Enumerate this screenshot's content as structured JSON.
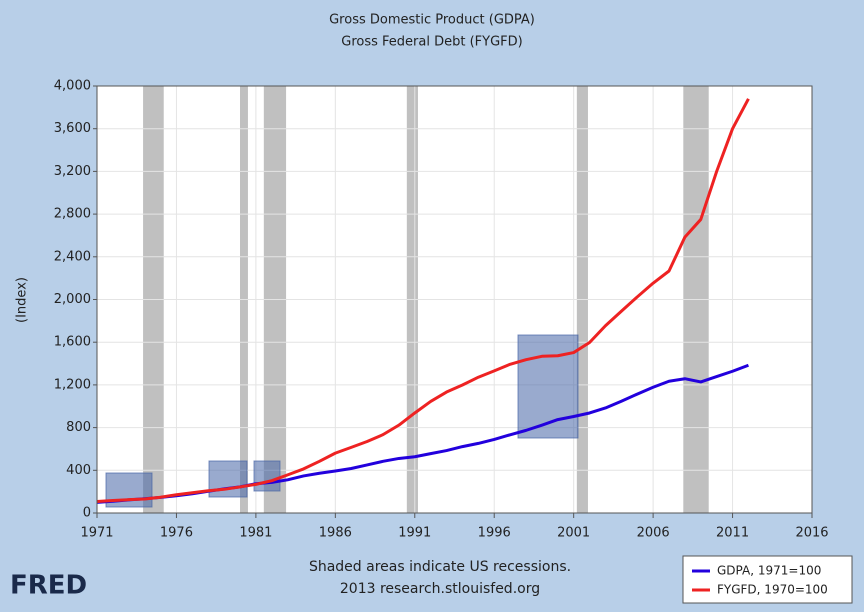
{
  "chart_data": {
    "type": "line",
    "title": "Gross Domestic Product (GDPA)",
    "subtitle": "Gross Federal Debt (FYGFD)",
    "ylabel": "(Index)",
    "note": "Shaded areas indicate US recessions.",
    "source": "2013 research.stlouisfed.org",
    "logo": "FRED",
    "x": [
      1971,
      1972,
      1973,
      1974,
      1975,
      1976,
      1977,
      1978,
      1979,
      1980,
      1981,
      1982,
      1983,
      1984,
      1985,
      1986,
      1987,
      1988,
      1989,
      1990,
      1991,
      1992,
      1993,
      1994,
      1995,
      1996,
      1997,
      1998,
      1999,
      2000,
      2001,
      2002,
      2003,
      2004,
      2005,
      2006,
      2007,
      2008,
      2009,
      2010,
      2011,
      2012
    ],
    "series": [
      {
        "name": "GDPA, 1971=100",
        "color": "#2200dd",
        "values": [
          100,
          110,
          123,
          134,
          146,
          162,
          180,
          203,
          226,
          245,
          274,
          287,
          311,
          347,
          372,
          393,
          417,
          450,
          484,
          511,
          527,
          556,
          585,
          622,
          652,
          689,
          733,
          774,
          823,
          875,
          904,
          937,
          984,
          1047,
          1114,
          1178,
          1234,
          1258,
          1228,
          1278,
          1328,
          1384
        ]
      },
      {
        "name": "FYGFD, 1970=100",
        "color": "#ee2222",
        "values": [
          108,
          117,
          125,
          131,
          148,
          171,
          190,
          208,
          222,
          244,
          268,
          303,
          357,
          413,
          484,
          561,
          615,
          670,
          734,
          823,
          937,
          1045,
          1133,
          1199,
          1272,
          1331,
          1393,
          1436,
          1468,
          1473,
          1503,
          1597,
          1754,
          1890,
          2024,
          2153,
          2267,
          2584,
          2750,
          3200,
          3600,
          3880
        ]
      }
    ],
    "recessions": [
      [
        1973.9,
        1975.2
      ],
      [
        1980.0,
        1980.5
      ],
      [
        1981.5,
        1982.9
      ],
      [
        1990.5,
        1991.2
      ],
      [
        2001.2,
        2001.9
      ],
      [
        2007.9,
        2009.5
      ]
    ],
    "recession_color": "#c0c0c0",
    "xlim": [
      1971,
      2016
    ],
    "xticks": [
      1971,
      1976,
      1981,
      1986,
      1991,
      1996,
      2001,
      2006,
      2011,
      2016
    ],
    "ylim": [
      0,
      4000
    ],
    "yticks": [
      0,
      400,
      800,
      {
        "value": 1200,
        "label": "1,200"
      },
      {
        "value": 1600,
        "label": "1,600"
      },
      {
        "value": 2000,
        "label": "2,000"
      },
      {
        "value": 2400,
        "label": "2,400"
      },
      {
        "value": 2800,
        "label": "2,800"
      },
      {
        "value": 3200,
        "label": "3,200"
      },
      {
        "value": 3600,
        "label": "3,600"
      },
      {
        "value": 4000,
        "label": "4,000"
      }
    ],
    "grid": true,
    "legend": "bottom-right"
  }
}
